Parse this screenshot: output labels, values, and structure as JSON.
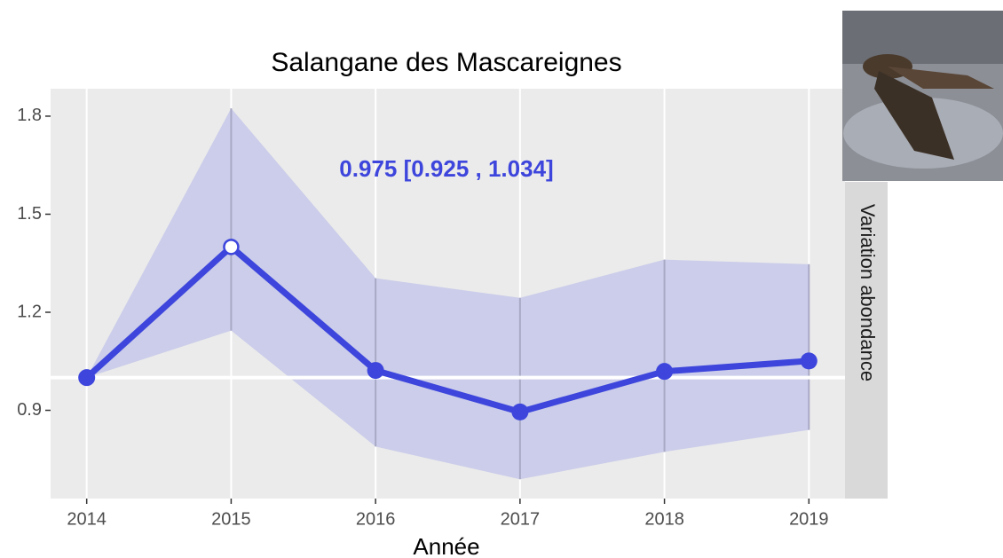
{
  "chart_data": {
    "type": "line",
    "title": "Salangane des Mascareignes",
    "xlabel": "Année",
    "strip_label": "Variation abondance",
    "annotation": "0.975  [0.925 , 1.034]",
    "x": [
      2014,
      2015,
      2016,
      2017,
      2018,
      2019
    ],
    "values": [
      1.0,
      1.4,
      1.022,
      0.895,
      1.019,
      1.051
    ],
    "upper": [
      1.0,
      1.824,
      1.304,
      1.244,
      1.361,
      1.347
    ],
    "lower": [
      1.0,
      1.144,
      0.789,
      0.689,
      0.773,
      0.84
    ],
    "hollow_points": [
      1
    ],
    "reference_line": 1.0,
    "color": "#3d45dc",
    "band_color": "#c9cbea",
    "xlim": [
      2013.75,
      2019.25
    ],
    "xticks": [
      2014,
      2015,
      2016,
      2017,
      2018,
      2019
    ],
    "ylim": [
      0.63,
      1.884
    ],
    "yticks": [
      0.9,
      1.2,
      1.5,
      1.8
    ],
    "grid": "x"
  }
}
